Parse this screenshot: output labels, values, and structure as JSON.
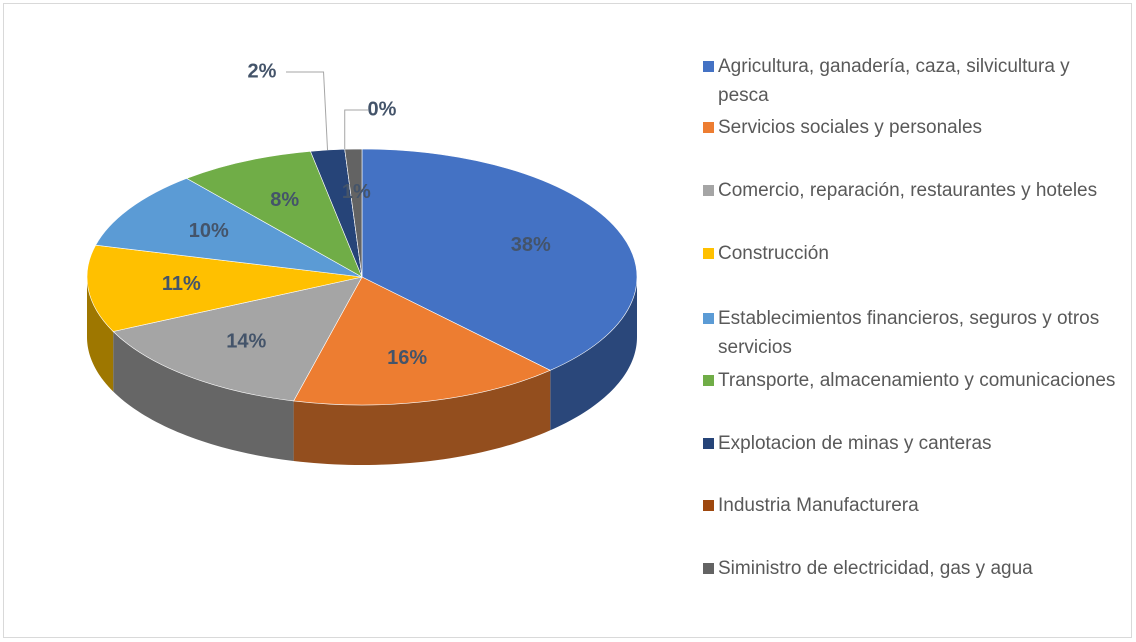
{
  "chart_data": {
    "type": "pie",
    "categories": [
      "Agricultura, ganadería, caza, silvicultura y pesca",
      "Servicios sociales y personales",
      "Comercio, reparación, restaurantes y hoteles",
      "Construcción",
      "Establecimientos financieros, seguros y otros servicios",
      "Transporte, almacenamiento y comunicaciones",
      "Explotacion de minas y canteras",
      "Industria Manufacturera",
      "Siministro de electricidad, gas y agua"
    ],
    "values": [
      38,
      16,
      14,
      11,
      10,
      8,
      2,
      0,
      1
    ],
    "value_labels": [
      "38%",
      "16%",
      "14%",
      "11%",
      "10%",
      "8%",
      "2%",
      "0%",
      "1%"
    ],
    "colors": [
      "#4472c4",
      "#ed7d31",
      "#a5a5a5",
      "#ffc000",
      "#5b9bd5",
      "#70ad47",
      "#264478",
      "#9e480e",
      "#636363"
    ],
    "legend": "right"
  }
}
